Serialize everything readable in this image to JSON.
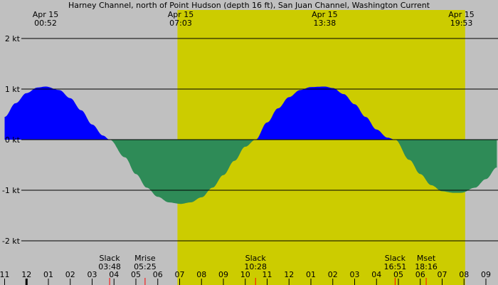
{
  "chart_data": {
    "type": "area",
    "title": "Harney Channel, north of Point Hudson (depth 16 ft), San Juan Channel, Washington Current",
    "xlabel": "",
    "ylabel": "",
    "unit": "kt",
    "colors": {
      "background": "#c0c0c0",
      "daylight": "#cccc00",
      "flood": "#0000ff",
      "ebb": "#2e8b57",
      "gridline": "#000000",
      "tick_mark": "#ff0000"
    },
    "x_axis": {
      "start_hour": 11,
      "end_hour": 33.5,
      "ticks": [
        {
          "hour": 11,
          "label": "11"
        },
        {
          "hour": 12,
          "label": "12"
        },
        {
          "hour": 13,
          "label": "01"
        },
        {
          "hour": 14,
          "label": "02"
        },
        {
          "hour": 15,
          "label": "03"
        },
        {
          "hour": 16,
          "label": "04"
        },
        {
          "hour": 17,
          "label": "05"
        },
        {
          "hour": 18,
          "label": "06"
        },
        {
          "hour": 19,
          "label": "07"
        },
        {
          "hour": 20,
          "label": "08"
        },
        {
          "hour": 21,
          "label": "09"
        },
        {
          "hour": 22,
          "label": "10"
        },
        {
          "hour": 23,
          "label": "11"
        },
        {
          "hour": 24,
          "label": "12"
        },
        {
          "hour": 25,
          "label": "01"
        },
        {
          "hour": 26,
          "label": "02"
        },
        {
          "hour": 27,
          "label": "03"
        },
        {
          "hour": 28,
          "label": "04"
        },
        {
          "hour": 29,
          "label": "05"
        },
        {
          "hour": 30,
          "label": "06"
        },
        {
          "hour": 31,
          "label": "07"
        },
        {
          "hour": 32,
          "label": "08"
        },
        {
          "hour": 33,
          "label": "09"
        }
      ]
    },
    "y_axis": {
      "ylim": [
        -2.8,
        2.5
      ],
      "ticks": [
        {
          "value": 2,
          "label": "2 kt"
        },
        {
          "value": 1,
          "label": "1 kt"
        },
        {
          "value": 0,
          "label": "0 kt"
        },
        {
          "value": -1,
          "label": "-1 kt"
        },
        {
          "value": -2,
          "label": "-2 kt"
        }
      ]
    },
    "daylight": {
      "start_hour": 18.9,
      "end_hour": 32.05
    },
    "extremes": [
      {
        "hour": 12.87,
        "date": "Apr 15",
        "time": "00:52",
        "value": 1.05
      },
      {
        "hour": 19.05,
        "date": "Apr 15",
        "time": "07:03",
        "value": -1.27
      },
      {
        "hour": 25.63,
        "date": "Apr 15",
        "time": "13:38",
        "value": 1.05
      },
      {
        "hour": 31.88,
        "date": "Apr 15",
        "time": "19:53",
        "value": -1.05
      }
    ],
    "curve": {
      "x": [
        11,
        11.5,
        12,
        12.5,
        12.87,
        13.5,
        14,
        14.5,
        15,
        15.5,
        15.8,
        16.5,
        17,
        17.5,
        18,
        18.5,
        19.05,
        19.5,
        20,
        20.5,
        21,
        21.5,
        22,
        22.47,
        23,
        23.5,
        24,
        24.5,
        25,
        25.63,
        26,
        26.5,
        27,
        27.5,
        28,
        28.5,
        28.85,
        29.5,
        30,
        30.5,
        31,
        31.5,
        31.88,
        32.5,
        33,
        33.5
      ],
      "y": [
        0.45,
        0.72,
        0.92,
        1.03,
        1.05,
        0.98,
        0.82,
        0.58,
        0.3,
        0.08,
        0.0,
        -0.35,
        -0.68,
        -0.95,
        -1.13,
        -1.24,
        -1.27,
        -1.24,
        -1.14,
        -0.95,
        -0.7,
        -0.42,
        -0.14,
        0.0,
        0.34,
        0.62,
        0.84,
        0.98,
        1.04,
        1.05,
        1.02,
        0.9,
        0.7,
        0.45,
        0.2,
        0.04,
        0.0,
        -0.4,
        -0.68,
        -0.9,
        -1.02,
        -1.05,
        -1.05,
        -0.95,
        -0.78,
        -0.55
      ]
    },
    "events": [
      {
        "hour": 15.8,
        "label": "Slack",
        "time": "03:48"
      },
      {
        "hour": 17.42,
        "label": "Mrise",
        "time": "05:25"
      },
      {
        "hour": 22.47,
        "label": "Slack",
        "time": "10:28"
      },
      {
        "hour": 28.85,
        "label": "Slack",
        "time": "16:51"
      },
      {
        "hour": 30.27,
        "label": "Mset",
        "time": "18:16"
      }
    ],
    "midnight_hour": 12
  }
}
